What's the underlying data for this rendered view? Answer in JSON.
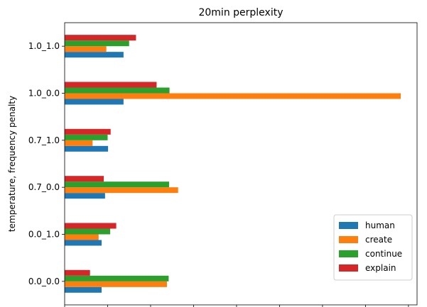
{
  "chart_data": {
    "type": "bar",
    "orientation": "horizontal",
    "title": "20min perplexity",
    "xlabel": "",
    "ylabel": "temperature, frequency penalty",
    "categories": [
      "0.0_0.0",
      "0.0_1.0",
      "0.7_0.0",
      "0.7_1.0",
      "1.0_0.0",
      "1.0_1.0"
    ],
    "xlim": [
      0,
      8200
    ],
    "xticks": [
      0,
      1000,
      2000,
      3000,
      4000,
      5000,
      6000,
      7000,
      8000
    ],
    "grid": false,
    "legend_position": "bottom-right",
    "series": [
      {
        "name": "human",
        "color": "#1f77b4",
        "values": [
          860,
          860,
          940,
          1010,
          1370,
          1370
        ]
      },
      {
        "name": "create",
        "color": "#ff7f0e",
        "values": [
          2380,
          790,
          2640,
          650,
          7820,
          970
        ]
      },
      {
        "name": "continue",
        "color": "#2ca02c",
        "values": [
          2420,
          1060,
          2430,
          1000,
          2440,
          1500
        ]
      },
      {
        "name": "explain",
        "color": "#d62728",
        "values": [
          590,
          1200,
          910,
          1070,
          2140,
          1660
        ]
      }
    ]
  }
}
